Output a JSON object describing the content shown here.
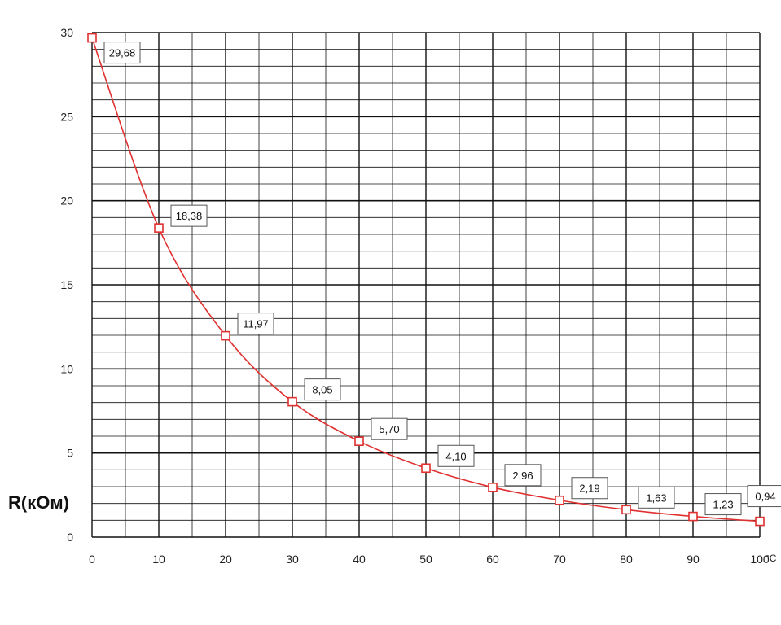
{
  "chart_data": {
    "type": "line",
    "ylabel": "R(кОм)",
    "x_unit": "°C",
    "xlim": [
      0,
      100
    ],
    "ylim": [
      0,
      30
    ],
    "x_ticks": [
      "0",
      "10",
      "20",
      "30",
      "40",
      "50",
      "60",
      "70",
      "80",
      "90",
      "100"
    ],
    "y_ticks": [
      "0",
      "5",
      "10",
      "15",
      "20",
      "25",
      "30"
    ],
    "grid": true,
    "colors": {
      "line": "#e03030",
      "grid": "#111111"
    },
    "series": [
      {
        "x": [
          0,
          10,
          20,
          30,
          40,
          50,
          60,
          70,
          80,
          90,
          100
        ],
        "y": [
          29.68,
          18.38,
          11.97,
          8.05,
          5.7,
          4.1,
          2.96,
          2.19,
          1.63,
          1.23,
          0.94
        ],
        "labels": [
          "29,68",
          "18,38",
          "11,97",
          "8,05",
          "5,70",
          "4,10",
          "2,96",
          "2,19",
          "1,63",
          "1,23",
          "0,94"
        ]
      }
    ]
  }
}
